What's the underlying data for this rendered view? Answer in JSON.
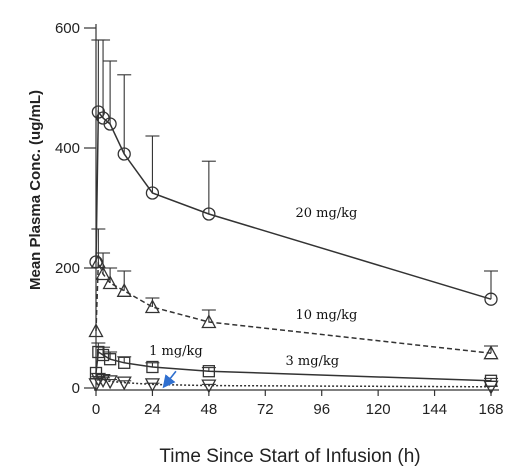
{
  "chart_data": {
    "type": "line",
    "title": "",
    "xlabel": "Time Since Start of Infusion (h)",
    "ylabel": "Mean Plasma Conc. (ug/mL)",
    "xlim": [
      0,
      168
    ],
    "ylim": [
      0,
      600
    ],
    "xticks": [
      0,
      24,
      48,
      72,
      96,
      120,
      144,
      168
    ],
    "yticks": [
      0,
      200,
      400,
      600
    ],
    "grid": false,
    "series": [
      {
        "name": "20 mg/kg",
        "marker": "circle",
        "line_style": "solid",
        "x": [
          0,
          1,
          3,
          6,
          12,
          24,
          48,
          168
        ],
        "y": [
          210,
          460,
          450,
          440,
          390,
          325,
          290,
          148
        ],
        "error_upper": [
          null,
          580,
          580,
          545,
          522,
          420,
          378,
          195
        ]
      },
      {
        "name": "10 mg/kg",
        "marker": "triangle",
        "line_style": "dashed",
        "x": [
          0,
          1,
          3,
          6,
          12,
          24,
          48,
          168
        ],
        "y": [
          95,
          210,
          190,
          175,
          162,
          135,
          110,
          58
        ],
        "error_upper": [
          null,
          265,
          225,
          200,
          195,
          150,
          130,
          70
        ]
      },
      {
        "name": "3 mg/kg",
        "marker": "square",
        "line_style": "solid",
        "x": [
          0,
          1,
          3,
          6,
          12,
          24,
          48,
          168
        ],
        "y": [
          25,
          60,
          55,
          48,
          42,
          35,
          28,
          12
        ],
        "error_upper": [
          null,
          75,
          68,
          60,
          52,
          42,
          34,
          16
        ]
      },
      {
        "name": "1 mg/kg",
        "marker": "inverted-triangle",
        "line_style": "dotted",
        "x": [
          0,
          1,
          3,
          6,
          12,
          24,
          48,
          168
        ],
        "y": [
          6,
          15,
          13,
          11,
          9,
          6,
          4,
          2
        ],
        "error_upper": [
          null,
          19,
          17,
          14,
          12,
          8,
          6,
          3
        ]
      }
    ],
    "annotations": [
      {
        "text": "20 mg/kg",
        "series": "20 mg/kg",
        "at_x": 98,
        "at_y": 285
      },
      {
        "text": "10 mg/kg",
        "series": "10 mg/kg",
        "at_x": 98,
        "at_y": 115
      },
      {
        "text": "1 mg/kg",
        "series": "1 mg/kg",
        "at_x": 34,
        "at_y": 55
      },
      {
        "text": "3 mg/kg",
        "series": "3 mg/kg",
        "at_x": 92,
        "at_y": 38
      }
    ],
    "arrow": {
      "from_x": 34,
      "from_y": 28,
      "to_x": 30,
      "to_y": 8,
      "color": "#2f6fcf"
    }
  }
}
